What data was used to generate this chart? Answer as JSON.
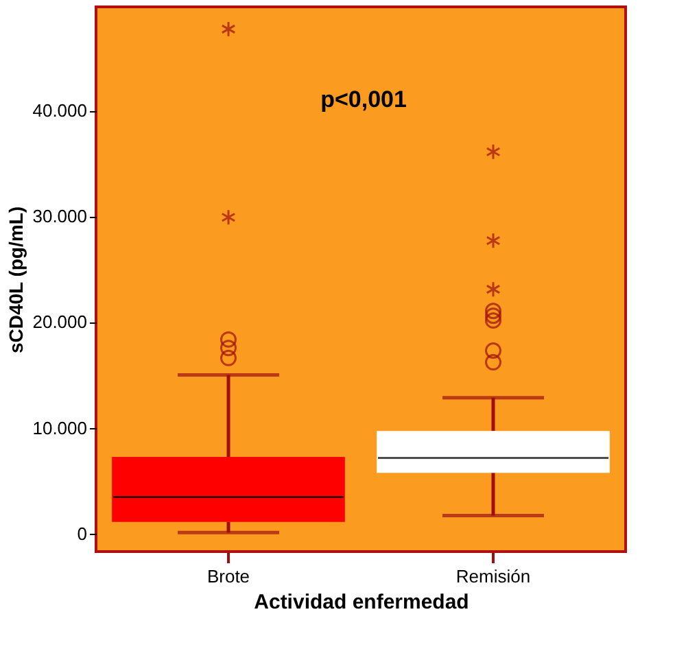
{
  "chart_data": {
    "type": "box",
    "xlabel": "Actividad enfermedad",
    "ylabel": "sCD40L (pg/mL)",
    "categories": [
      "Brote",
      "Remisión"
    ],
    "boxes": [
      {
        "low": 100,
        "q1": 1100,
        "median": 3450,
        "q3": 7250,
        "high": 15000,
        "outliers": [
          16600,
          17550,
          18350,
          29900,
          47700
        ]
      },
      {
        "low": 1700,
        "q1": 5750,
        "median": 7150,
        "q3": 9700,
        "high": 12850,
        "outliers": [
          16200,
          17300,
          20150,
          20600,
          21050,
          23100,
          27700,
          36100
        ]
      }
    ],
    "colors": [
      "#ff0000",
      "#ffffff"
    ],
    "ylim": [
      -1700,
      49800
    ],
    "yticks": [
      {
        "value": 0,
        "label": "0"
      },
      {
        "value": 10000,
        "label": "10.000"
      },
      {
        "value": 20000,
        "label": "20.000"
      },
      {
        "value": 30000,
        "label": "30.000"
      },
      {
        "value": 40000,
        "label": "40.000"
      }
    ],
    "annotations": [
      "p<0,001"
    ],
    "grid": false
  }
}
